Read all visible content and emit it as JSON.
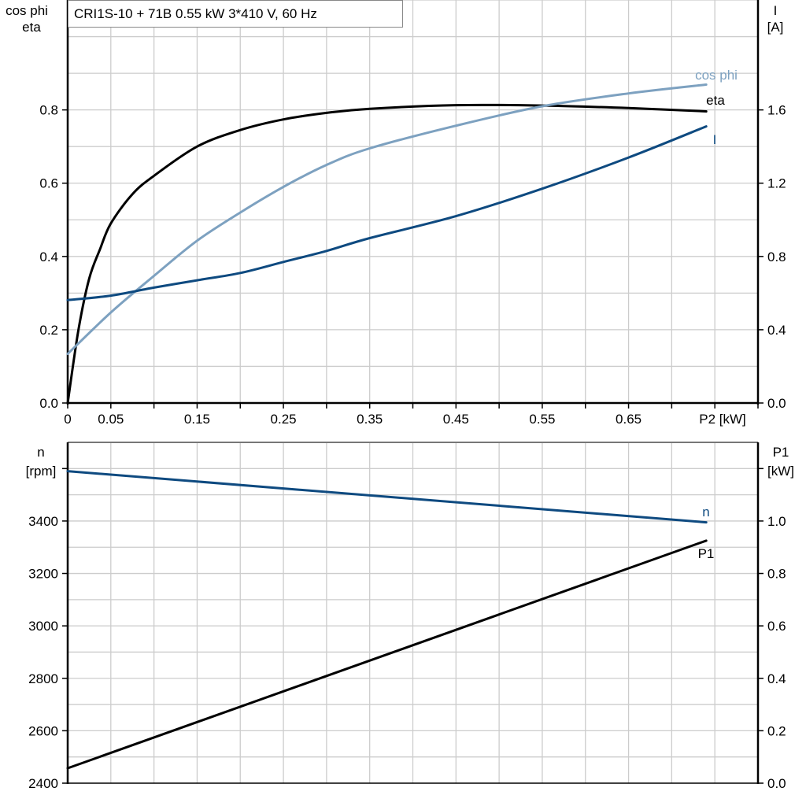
{
  "title": "CRI1S-10 + 71B   0.55 kW   3*410 V, 60 Hz",
  "colors": {
    "eta": "#000000",
    "cos_phi": "#7da1c0",
    "I": "#0e4a80",
    "n": "#0e4a80",
    "P1": "#000000",
    "grid": "#cccccc"
  },
  "chart_data": [
    {
      "type": "line",
      "xlabel": "P2 [kW]",
      "xlim": [
        0,
        0.8
      ],
      "x_tick_labels": [
        "0",
        "0.05",
        "0.15",
        "0.25",
        "0.35",
        "0.45",
        "0.55",
        "0.65"
      ],
      "x_tick_values": [
        0,
        0.05,
        0.15,
        0.25,
        0.35,
        0.45,
        0.55,
        0.65
      ],
      "ylabel_left": [
        "cos phi",
        "eta"
      ],
      "ylim_left": [
        0,
        1.1
      ],
      "y_ticks_left": [
        "0.0",
        "0.2",
        "0.4",
        "0.6",
        "0.8"
      ],
      "ylabel_right": [
        "I",
        "[A]"
      ],
      "ylim_right": [
        0,
        2.2
      ],
      "y_ticks_right": [
        "0.0",
        "0.4",
        "0.8",
        "1.2",
        "1.6"
      ],
      "grid": true,
      "series": [
        {
          "name": "eta",
          "axis": "left",
          "x": [
            0,
            0.0125,
            0.025,
            0.0375,
            0.05,
            0.075,
            0.1,
            0.15,
            0.2,
            0.25,
            0.3,
            0.35,
            0.45,
            0.55,
            0.65,
            0.74
          ],
          "y": [
            0,
            0.2,
            0.34,
            0.42,
            0.49,
            0.57,
            0.62,
            0.7,
            0.745,
            0.774,
            0.792,
            0.803,
            0.813,
            0.812,
            0.805,
            0.796
          ]
        },
        {
          "name": "cos phi",
          "axis": "left",
          "x": [
            0,
            0.05,
            0.1,
            0.15,
            0.2,
            0.25,
            0.3,
            0.35,
            0.45,
            0.55,
            0.65,
            0.74
          ],
          "y": [
            0.134,
            0.247,
            0.347,
            0.443,
            0.52,
            0.59,
            0.65,
            0.695,
            0.757,
            0.81,
            0.845,
            0.869
          ]
        },
        {
          "name": "I",
          "axis": "right",
          "x": [
            0,
            0.05,
            0.1,
            0.15,
            0.2,
            0.25,
            0.3,
            0.35,
            0.45,
            0.55,
            0.65,
            0.74
          ],
          "y": [
            0.562,
            0.586,
            0.63,
            0.67,
            0.71,
            0.77,
            0.83,
            0.9,
            1.02,
            1.17,
            1.34,
            1.51
          ]
        }
      ]
    },
    {
      "type": "line",
      "xlim": [
        0,
        0.8
      ],
      "ylabel_left": [
        "n",
        "[rpm]"
      ],
      "ylim_left": [
        2400,
        3700
      ],
      "y_ticks_left": [
        "2400",
        "2600",
        "2800",
        "3000",
        "3200",
        "3400"
      ],
      "ylabel_right": [
        "P1",
        "[kW]"
      ],
      "ylim_right": [
        0,
        1.3
      ],
      "y_ticks_right": [
        "0.0",
        "0.2",
        "0.4",
        "0.6",
        "0.8",
        "1.0"
      ],
      "grid": true,
      "series": [
        {
          "name": "n",
          "axis": "left",
          "x": [
            0,
            0.74
          ],
          "y": [
            3590,
            3395
          ]
        },
        {
          "name": "P1",
          "axis": "right",
          "x": [
            0,
            0.74
          ],
          "y": [
            0.057,
            0.925
          ]
        }
      ]
    }
  ]
}
